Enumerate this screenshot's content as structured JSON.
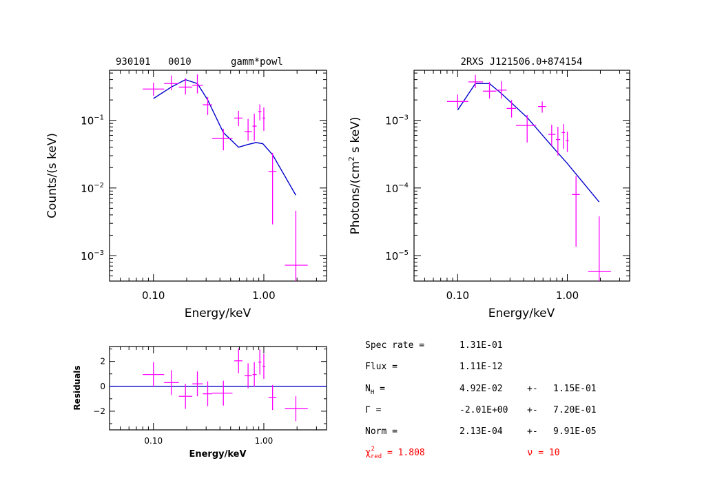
{
  "colors": {
    "data": "#ff00ff",
    "model": "#0000cc",
    "fit_stats": "#ff0000",
    "axis": "#000000"
  },
  "panels": {
    "counts": {
      "title_obs": "930101",
      "title_id": "0010",
      "title_model": "gamm*powl",
      "xlabel": "Energy/keV",
      "ylabel": "Counts/(s keV)"
    },
    "photons": {
      "title": "2RXS J121506.0+874154",
      "xlabel": "Energy/keV",
      "ylabel_main": "Photons/(cm",
      "ylabel_sup": "2",
      "ylabel_tail": " s keV)"
    },
    "residuals": {
      "xlabel": "Energy/keV",
      "ylabel": "Residuals"
    }
  },
  "fit_results": {
    "spec_rate": {
      "label": "Spec rate =",
      "value": "1.31E-01"
    },
    "flux": {
      "label": "Flux =",
      "value": "1.11E-12"
    },
    "nh": {
      "label_main": "N",
      "label_sub": "H",
      "label_tail": " =",
      "value": "4.92E-02",
      "pm": "+-",
      "error": "1.15E-01"
    },
    "gamma": {
      "label": "Γ =",
      "value": "-2.01E+00",
      "pm": "+-",
      "error": "7.20E-01"
    },
    "norm": {
      "label": "Norm =",
      "value": "2.13E-04",
      "pm": "+-",
      "error": "9.91E-05"
    },
    "chi2": {
      "label_main": "χ",
      "label_sup": "2",
      "label_sub": "red",
      "label_tail": " = ",
      "value": "1.808"
    },
    "nu": {
      "label": "ν",
      "eq": " = ",
      "value": "10"
    }
  },
  "chart_data": [
    {
      "type": "scatter",
      "title": "930101   0010   gamm*powl",
      "xlabel": "Energy/keV",
      "ylabel": "Counts/(s keV)",
      "xscale": "log",
      "yscale": "log",
      "xlim": [
        0.04,
        3.7
      ],
      "ylim": [
        0.00042,
        0.55
      ],
      "x_ticks": [
        {
          "v": 0.1,
          "label": "0.10"
        },
        {
          "v": 1.0,
          "label": "1.00"
        }
      ],
      "y_ticks": [
        {
          "v": 0.1,
          "base": "10",
          "exp": "−1"
        },
        {
          "v": 0.01,
          "base": "10",
          "exp": "−2"
        },
        {
          "v": 0.001,
          "base": "10",
          "exp": "−3"
        }
      ],
      "series": [
        {
          "kind": "data",
          "points": [
            {
              "x": 0.1,
              "xlo": 0.08,
              "xhi": 0.125,
              "y": 0.29,
              "ylo": 0.23,
              "yhi": 0.36
            },
            {
              "x": 0.145,
              "xlo": 0.125,
              "xhi": 0.17,
              "y": 0.35,
              "ylo": 0.28,
              "yhi": 0.46
            },
            {
              "x": 0.195,
              "xlo": 0.17,
              "xhi": 0.225,
              "y": 0.31,
              "ylo": 0.24,
              "yhi": 0.42
            },
            {
              "x": 0.25,
              "xlo": 0.225,
              "xhi": 0.28,
              "y": 0.33,
              "ylo": 0.25,
              "yhi": 0.48
            },
            {
              "x": 0.31,
              "xlo": 0.28,
              "xhi": 0.34,
              "y": 0.17,
              "ylo": 0.12,
              "yhi": 0.22
            },
            {
              "x": 0.43,
              "xlo": 0.34,
              "xhi": 0.52,
              "y": 0.054,
              "ylo": 0.036,
              "yhi": 0.075
            },
            {
              "x": 0.59,
              "xlo": 0.54,
              "xhi": 0.64,
              "y": 0.108,
              "ylo": 0.082,
              "yhi": 0.138
            },
            {
              "x": 0.72,
              "xlo": 0.67,
              "xhi": 0.78,
              "y": 0.068,
              "ylo": 0.05,
              "yhi": 0.105
            },
            {
              "x": 0.82,
              "xlo": 0.79,
              "xhi": 0.86,
              "y": 0.082,
              "ylo": 0.05,
              "yhi": 0.125
            },
            {
              "x": 0.92,
              "xlo": 0.89,
              "xhi": 0.95,
              "y": 0.135,
              "ylo": 0.1,
              "yhi": 0.172
            },
            {
              "x": 1.0,
              "xlo": 0.97,
              "xhi": 1.03,
              "y": 0.108,
              "ylo": 0.07,
              "yhi": 0.155
            },
            {
              "x": 1.2,
              "xlo": 1.1,
              "xhi": 1.3,
              "y": 0.0175,
              "ylo": 0.0029,
              "yhi": 0.033
            },
            {
              "x": 1.95,
              "xlo": 1.55,
              "xhi": 2.5,
              "y": 0.00072,
              "ylo": 0.00042,
              "yhi": 0.0046
            }
          ]
        },
        {
          "kind": "model",
          "points": [
            [
              0.1,
              0.21
            ],
            [
              0.145,
              0.31
            ],
            [
              0.195,
              0.4
            ],
            [
              0.25,
              0.35
            ],
            [
              0.31,
              0.2
            ],
            [
              0.43,
              0.066
            ],
            [
              0.59,
              0.04
            ],
            [
              0.72,
              0.044
            ],
            [
              0.85,
              0.047
            ],
            [
              0.98,
              0.045
            ],
            [
              1.2,
              0.031
            ],
            [
              1.95,
              0.0078
            ]
          ]
        }
      ]
    },
    {
      "type": "scatter",
      "title": "2RXS J121506.0+874154",
      "xlabel": "Energy/keV",
      "ylabel": "Photons/(cm2 s keV)",
      "xscale": "log",
      "yscale": "log",
      "xlim": [
        0.04,
        3.7
      ],
      "ylim": [
        4.2e-06,
        0.0055
      ],
      "x_ticks": [
        {
          "v": 0.1,
          "label": "0.10"
        },
        {
          "v": 1.0,
          "label": "1.00"
        }
      ],
      "y_ticks": [
        {
          "v": 0.001,
          "base": "10",
          "exp": "−3"
        },
        {
          "v": 0.0001,
          "base": "10",
          "exp": "−4"
        },
        {
          "v": 1e-05,
          "base": "10",
          "exp": "−5"
        }
      ],
      "series": [
        {
          "kind": "data",
          "points": [
            {
              "x": 0.1,
              "xlo": 0.08,
              "xhi": 0.125,
              "y": 0.0019,
              "ylo": 0.0015,
              "yhi": 0.0024
            },
            {
              "x": 0.145,
              "xlo": 0.125,
              "xhi": 0.17,
              "y": 0.0037,
              "ylo": 0.003,
              "yhi": 0.0047
            },
            {
              "x": 0.195,
              "xlo": 0.17,
              "xhi": 0.225,
              "y": 0.0027,
              "ylo": 0.0021,
              "yhi": 0.0037
            },
            {
              "x": 0.25,
              "xlo": 0.225,
              "xhi": 0.28,
              "y": 0.0028,
              "ylo": 0.0021,
              "yhi": 0.0038
            },
            {
              "x": 0.31,
              "xlo": 0.28,
              "xhi": 0.34,
              "y": 0.0015,
              "ylo": 0.0011,
              "yhi": 0.002
            },
            {
              "x": 0.43,
              "xlo": 0.34,
              "xhi": 0.52,
              "y": 0.00084,
              "ylo": 0.00047,
              "yhi": 0.0012
            },
            {
              "x": 0.59,
              "xlo": 0.54,
              "xhi": 0.64,
              "y": 0.0016,
              "ylo": 0.0013,
              "yhi": 0.0019
            },
            {
              "x": 0.72,
              "xlo": 0.67,
              "xhi": 0.78,
              "y": 0.00062,
              "ylo": 0.00042,
              "yhi": 0.00086
            },
            {
              "x": 0.82,
              "xlo": 0.79,
              "xhi": 0.86,
              "y": 0.00052,
              "ylo": 0.0003,
              "yhi": 0.0008
            },
            {
              "x": 0.92,
              "xlo": 0.89,
              "xhi": 0.95,
              "y": 0.00066,
              "ylo": 0.00038,
              "yhi": 0.00088
            },
            {
              "x": 1.0,
              "xlo": 0.97,
              "xhi": 1.03,
              "y": 0.0005,
              "ylo": 0.00034,
              "yhi": 0.00068
            },
            {
              "x": 1.2,
              "xlo": 1.1,
              "xhi": 1.3,
              "y": 8e-05,
              "ylo": 1.35e-05,
              "yhi": 0.00015
            },
            {
              "x": 1.95,
              "xlo": 1.55,
              "xhi": 2.5,
              "y": 5.8e-06,
              "ylo": 4.2e-06,
              "yhi": 3.8e-05
            }
          ]
        },
        {
          "kind": "model",
          "points": [
            [
              0.1,
              0.00142
            ],
            [
              0.145,
              0.0035
            ],
            [
              0.195,
              0.0035
            ],
            [
              0.25,
              0.0025
            ],
            [
              0.43,
              0.0011
            ],
            [
              0.72,
              0.00042
            ],
            [
              1.0,
              0.00023
            ],
            [
              1.95,
              6.2e-05
            ]
          ]
        }
      ]
    },
    {
      "type": "scatter",
      "title": "",
      "xlabel": "Energy/keV",
      "ylabel": "Residuals",
      "xscale": "log",
      "yscale": "linear",
      "xlim": [
        0.04,
        3.7
      ],
      "ylim": [
        -3.5,
        3.2
      ],
      "x_ticks": [
        {
          "v": 0.1,
          "label": "0.10"
        },
        {
          "v": 1.0,
          "label": "1.00"
        }
      ],
      "y_ticks": [
        {
          "v": 2,
          "label": "2"
        },
        {
          "v": 0,
          "label": "0"
        },
        {
          "v": -2,
          "label": "−2"
        }
      ],
      "series": [
        {
          "kind": "data",
          "points": [
            {
              "x": 0.1,
              "xlo": 0.08,
              "xhi": 0.125,
              "y": 0.95,
              "ylo": -0.05,
              "yhi": 1.95
            },
            {
              "x": 0.145,
              "xlo": 0.125,
              "xhi": 0.17,
              "y": 0.3,
              "ylo": -0.7,
              "yhi": 1.3
            },
            {
              "x": 0.195,
              "xlo": 0.17,
              "xhi": 0.225,
              "y": -0.8,
              "ylo": -1.8,
              "yhi": 0.2
            },
            {
              "x": 0.25,
              "xlo": 0.225,
              "xhi": 0.28,
              "y": 0.2,
              "ylo": -0.8,
              "yhi": 1.2
            },
            {
              "x": 0.31,
              "xlo": 0.28,
              "xhi": 0.34,
              "y": -0.6,
              "ylo": -1.6,
              "yhi": 0.4
            },
            {
              "x": 0.43,
              "xlo": 0.34,
              "xhi": 0.52,
              "y": -0.55,
              "ylo": -1.55,
              "yhi": 0.45
            },
            {
              "x": 0.59,
              "xlo": 0.54,
              "xhi": 0.64,
              "y": 2.05,
              "ylo": 1.05,
              "yhi": 3.05
            },
            {
              "x": 0.72,
              "xlo": 0.67,
              "xhi": 0.78,
              "y": 0.85,
              "ylo": -0.15,
              "yhi": 1.85
            },
            {
              "x": 0.82,
              "xlo": 0.79,
              "xhi": 0.86,
              "y": 0.95,
              "ylo": -0.05,
              "yhi": 1.95
            },
            {
              "x": 0.92,
              "xlo": 0.89,
              "xhi": 0.95,
              "y": 1.95,
              "ylo": 0.95,
              "yhi": 2.95
            },
            {
              "x": 1.0,
              "xlo": 0.97,
              "xhi": 1.03,
              "y": 1.6,
              "ylo": 0.6,
              "yhi": 2.6
            },
            {
              "x": 1.2,
              "xlo": 1.1,
              "xhi": 1.3,
              "y": -0.9,
              "ylo": -1.9,
              "yhi": 0.1
            },
            {
              "x": 1.95,
              "xlo": 1.55,
              "xhi": 2.5,
              "y": -1.8,
              "ylo": -2.8,
              "yhi": -0.8
            }
          ]
        },
        {
          "kind": "model",
          "points": [
            [
              0.04,
              0
            ],
            [
              3.7,
              0
            ]
          ]
        }
      ]
    }
  ]
}
